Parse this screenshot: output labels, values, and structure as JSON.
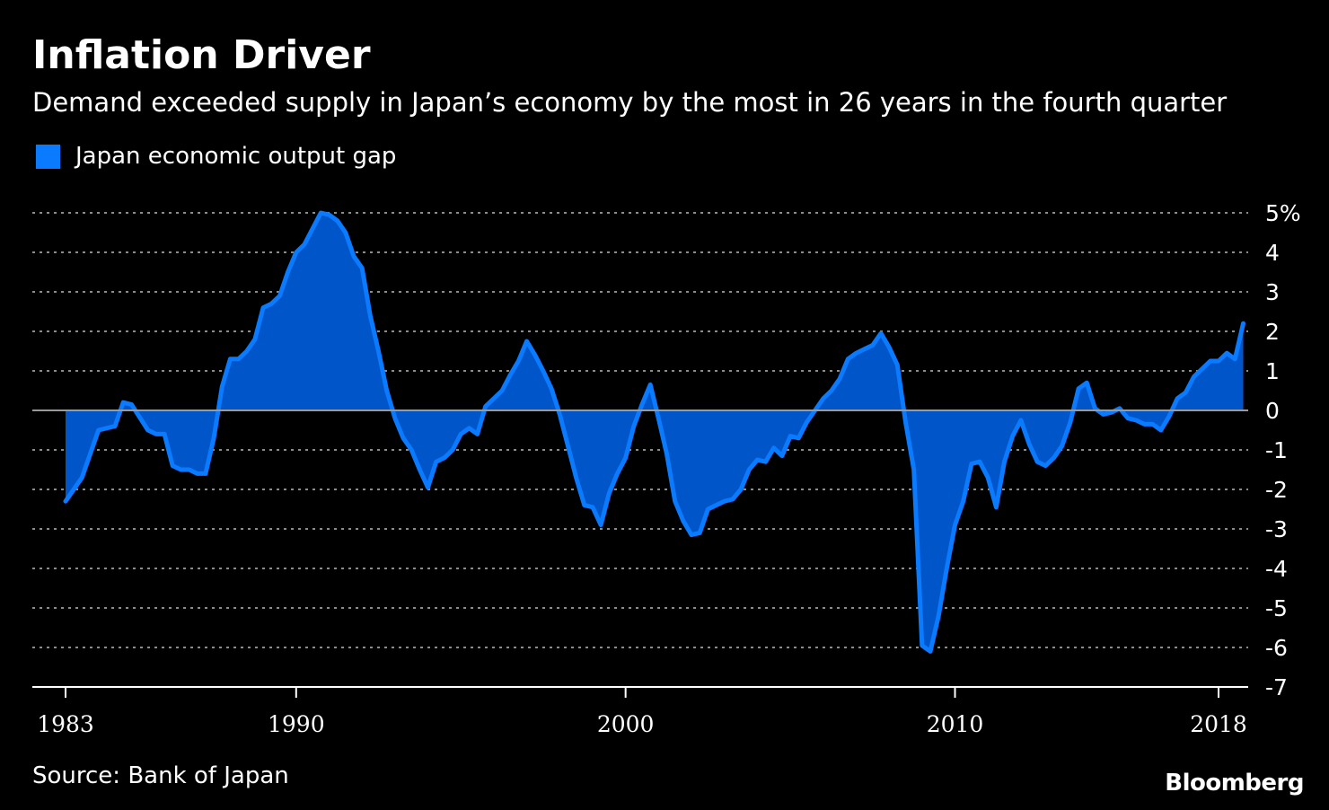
{
  "header": {
    "title": "Inflation Driver",
    "subtitle": "Demand exceeded supply in Japan’s economy by the most in 26 years in the fourth quarter"
  },
  "footer": {
    "source": "Source: Bank of Japan",
    "brand": "Bloomberg"
  },
  "colors": {
    "line": "#0a7aff",
    "fill": "#0056c9",
    "grid": "#8c8c8c",
    "background": "#000000"
  },
  "chart_data": {
    "type": "area",
    "title": "Inflation Driver",
    "subtitle": "Demand exceeded supply in Japan’s economy by the most in 26 years in the fourth quarter",
    "xlabel": "",
    "ylabel": "",
    "legend": [
      {
        "name": "Japan economic output gap",
        "color": "#0a7aff"
      }
    ],
    "legend_position": "top-left",
    "x_ticks": [
      "1983",
      "1990",
      "2000",
      "2010",
      "2018"
    ],
    "x_tick_values": [
      1983,
      1990,
      2000,
      2010,
      2018
    ],
    "xlim": [
      1983,
      2018.9
    ],
    "y_ticks": [
      "5%",
      "4",
      "3",
      "2",
      "1",
      "0",
      "-1",
      "-2",
      "-3",
      "-4",
      "-5",
      "-6",
      "-7"
    ],
    "y_tick_values": [
      5,
      4,
      3,
      2,
      1,
      0,
      -1,
      -2,
      -3,
      -4,
      -5,
      -6,
      -7
    ],
    "ylim": [
      -7,
      5
    ],
    "grid": true,
    "series": [
      {
        "name": "Japan economic output gap",
        "points": [
          [
            1983.0,
            -2.3
          ],
          [
            1983.5,
            -1.7
          ],
          [
            1984.0,
            -0.5
          ],
          [
            1984.5,
            -0.4
          ],
          [
            1984.75,
            0.2
          ],
          [
            1985.0,
            0.15
          ],
          [
            1985.5,
            -0.5
          ],
          [
            1985.75,
            -0.6
          ],
          [
            1986.0,
            -0.6
          ],
          [
            1986.25,
            -1.4
          ],
          [
            1986.5,
            -1.5
          ],
          [
            1986.75,
            -1.5
          ],
          [
            1987.0,
            -1.6
          ],
          [
            1987.25,
            -1.6
          ],
          [
            1987.5,
            -0.7
          ],
          [
            1987.75,
            0.6
          ],
          [
            1988.0,
            1.3
          ],
          [
            1988.25,
            1.3
          ],
          [
            1988.5,
            1.5
          ],
          [
            1988.75,
            1.8
          ],
          [
            1989.0,
            2.6
          ],
          [
            1989.25,
            2.7
          ],
          [
            1989.5,
            2.9
          ],
          [
            1989.75,
            3.5
          ],
          [
            1990.0,
            4.0
          ],
          [
            1990.25,
            4.2
          ],
          [
            1990.5,
            4.6
          ],
          [
            1990.75,
            5.0
          ],
          [
            1991.0,
            4.95
          ],
          [
            1991.25,
            4.8
          ],
          [
            1991.5,
            4.5
          ],
          [
            1991.75,
            3.9
          ],
          [
            1992.0,
            3.6
          ],
          [
            1992.25,
            2.4
          ],
          [
            1992.5,
            1.5
          ],
          [
            1992.75,
            0.5
          ],
          [
            1993.0,
            -0.2
          ],
          [
            1993.25,
            -0.7
          ],
          [
            1993.5,
            -1.0
          ],
          [
            1993.75,
            -1.5
          ],
          [
            1994.0,
            -1.95
          ],
          [
            1994.25,
            -1.3
          ],
          [
            1994.5,
            -1.2
          ],
          [
            1994.75,
            -1.0
          ],
          [
            1995.0,
            -0.6
          ],
          [
            1995.25,
            -0.45
          ],
          [
            1995.5,
            -0.6
          ],
          [
            1995.75,
            0.1
          ],
          [
            1996.0,
            0.3
          ],
          [
            1996.25,
            0.5
          ],
          [
            1996.5,
            0.9
          ],
          [
            1996.75,
            1.25
          ],
          [
            1997.0,
            1.75
          ],
          [
            1997.25,
            1.4
          ],
          [
            1997.5,
            1.0
          ],
          [
            1997.75,
            0.55
          ],
          [
            1998.0,
            -0.1
          ],
          [
            1998.25,
            -0.9
          ],
          [
            1998.5,
            -1.7
          ],
          [
            1998.75,
            -2.4
          ],
          [
            1999.0,
            -2.45
          ],
          [
            1999.25,
            -2.9
          ],
          [
            1999.5,
            -2.1
          ],
          [
            1999.75,
            -1.6
          ],
          [
            2000.0,
            -1.2
          ],
          [
            2000.25,
            -0.4
          ],
          [
            2000.5,
            0.15
          ],
          [
            2000.75,
            0.65
          ],
          [
            2001.0,
            -0.2
          ],
          [
            2001.25,
            -1.1
          ],
          [
            2001.5,
            -2.3
          ],
          [
            2001.75,
            -2.8
          ],
          [
            2002.0,
            -3.15
          ],
          [
            2002.25,
            -3.1
          ],
          [
            2002.5,
            -2.5
          ],
          [
            2002.75,
            -2.4
          ],
          [
            2003.0,
            -2.3
          ],
          [
            2003.25,
            -2.25
          ],
          [
            2003.5,
            -2.0
          ],
          [
            2003.75,
            -1.5
          ],
          [
            2004.0,
            -1.25
          ],
          [
            2004.25,
            -1.3
          ],
          [
            2004.5,
            -0.95
          ],
          [
            2004.75,
            -1.15
          ],
          [
            2005.0,
            -0.65
          ],
          [
            2005.25,
            -0.7
          ],
          [
            2005.5,
            -0.3
          ],
          [
            2005.75,
            0.0
          ],
          [
            2006.0,
            0.3
          ],
          [
            2006.25,
            0.5
          ],
          [
            2006.5,
            0.8
          ],
          [
            2006.75,
            1.3
          ],
          [
            2007.0,
            1.45
          ],
          [
            2007.25,
            1.55
          ],
          [
            2007.5,
            1.65
          ],
          [
            2007.75,
            1.95
          ],
          [
            2008.0,
            1.6
          ],
          [
            2008.25,
            1.15
          ],
          [
            2008.5,
            -0.3
          ],
          [
            2008.75,
            -1.5
          ],
          [
            2009.0,
            -5.95
          ],
          [
            2009.25,
            -6.1
          ],
          [
            2009.5,
            -5.2
          ],
          [
            2009.75,
            -4.0
          ],
          [
            2010.0,
            -2.9
          ],
          [
            2010.25,
            -2.3
          ],
          [
            2010.5,
            -1.35
          ],
          [
            2010.75,
            -1.3
          ],
          [
            2011.0,
            -1.7
          ],
          [
            2011.25,
            -2.45
          ],
          [
            2011.5,
            -1.3
          ],
          [
            2011.75,
            -0.65
          ],
          [
            2012.0,
            -0.25
          ],
          [
            2012.25,
            -0.85
          ],
          [
            2012.5,
            -1.3
          ],
          [
            2012.75,
            -1.4
          ],
          [
            2013.0,
            -1.2
          ],
          [
            2013.25,
            -0.9
          ],
          [
            2013.5,
            -0.3
          ],
          [
            2013.75,
            0.55
          ],
          [
            2014.0,
            0.7
          ],
          [
            2014.25,
            0.05
          ],
          [
            2014.5,
            -0.1
          ],
          [
            2014.75,
            -0.05
          ],
          [
            2015.0,
            0.05
          ],
          [
            2015.25,
            -0.2
          ],
          [
            2015.5,
            -0.25
          ],
          [
            2015.75,
            -0.35
          ],
          [
            2016.0,
            -0.35
          ],
          [
            2016.25,
            -0.5
          ],
          [
            2016.5,
            -0.15
          ],
          [
            2016.75,
            0.3
          ],
          [
            2017.0,
            0.45
          ],
          [
            2017.25,
            0.85
          ],
          [
            2017.5,
            1.05
          ],
          [
            2017.75,
            1.25
          ],
          [
            2018.0,
            1.25
          ],
          [
            2018.25,
            1.45
          ],
          [
            2018.5,
            1.3
          ],
          [
            2018.75,
            2.2
          ]
        ]
      }
    ]
  }
}
